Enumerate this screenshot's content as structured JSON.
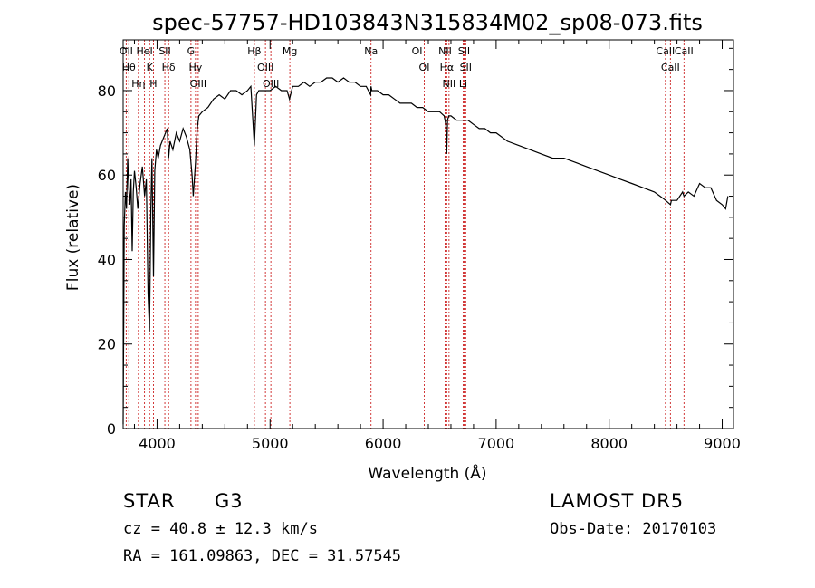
{
  "chart_data": {
    "type": "line",
    "title": "spec-57757-HD103843N315834M02_sp08-073.fits",
    "xlabel": "Wavelength (Å)",
    "ylabel": "Flux (relative)",
    "xlim": [
      3700,
      9100
    ],
    "ylim": [
      0,
      92
    ],
    "x_ticks": [
      4000,
      5000,
      6000,
      7000,
      8000,
      9000
    ],
    "y_ticks": [
      0,
      20,
      40,
      60,
      80
    ],
    "grid": false,
    "series": [
      {
        "x": [
          3700,
          3710,
          3720,
          3730,
          3740,
          3750,
          3760,
          3770,
          3780,
          3790,
          3800,
          3815,
          3830,
          3850,
          3870,
          3890,
          3905,
          3920,
          3933,
          3945,
          3955,
          3968,
          3980,
          3995,
          4010,
          4030,
          4060,
          4090,
          4102,
          4115,
          4140,
          4170,
          4200,
          4230,
          4260,
          4290,
          4310,
          4320,
          4340,
          4355,
          4370,
          4400,
          4450,
          4500,
          4550,
          4600,
          4650,
          4700,
          4750,
          4800,
          4830,
          4861,
          4880,
          4900,
          4950,
          5000,
          5050,
          5100,
          5150,
          5172,
          5200,
          5250,
          5300,
          5350,
          5400,
          5450,
          5500,
          5550,
          5600,
          5650,
          5700,
          5750,
          5800,
          5850,
          5890,
          5893,
          5900,
          5950,
          6000,
          6050,
          6100,
          6150,
          6200,
          6250,
          6300,
          6350,
          6400,
          6450,
          6500,
          6540,
          6555,
          6563,
          6570,
          6580,
          6600,
          6650,
          6700,
          6750,
          6800,
          6850,
          6900,
          6950,
          7000,
          7100,
          7200,
          7300,
          7400,
          7500,
          7600,
          7700,
          7800,
          7900,
          8000,
          8100,
          8200,
          8300,
          8400,
          8450,
          8500,
          8542,
          8550,
          8600,
          8650,
          8662,
          8700,
          8750,
          8800,
          8850,
          8900,
          8950,
          9000,
          9030,
          9050
        ],
        "y": [
          1,
          48,
          56,
          52,
          64,
          57,
          53,
          59,
          42,
          56,
          61,
          57,
          52,
          58,
          62,
          55,
          59,
          32,
          23,
          52,
          64,
          36,
          61,
          66,
          64,
          67,
          69,
          71,
          64,
          68,
          66,
          70,
          68,
          71,
          69,
          66,
          60,
          55,
          63,
          71,
          74,
          75,
          76,
          78,
          79,
          78,
          80,
          80,
          79,
          80,
          81,
          67,
          79,
          80,
          80,
          80,
          81,
          80,
          80,
          78,
          81,
          81,
          82,
          81,
          82,
          82,
          83,
          83,
          82,
          83,
          82,
          82,
          81,
          81,
          79,
          81,
          80,
          80,
          79,
          79,
          78,
          77,
          77,
          77,
          76,
          76,
          75,
          75,
          75,
          74,
          72,
          65,
          73,
          74,
          74,
          73,
          73,
          73,
          72,
          71,
          71,
          70,
          70,
          68,
          67,
          66,
          65,
          64,
          64,
          63,
          62,
          61,
          60,
          59,
          58,
          57,
          56,
          55,
          54,
          53,
          54,
          54,
          56,
          55,
          56,
          55,
          58,
          57,
          57,
          54,
          53,
          52,
          55
        ]
      }
    ],
    "lines": [
      {
        "w": 3727,
        "label": "OII"
      },
      {
        "w": 3750,
        "label": "Hθ"
      },
      {
        "w": 3835,
        "label": "Hη"
      },
      {
        "w": 3889,
        "label": "HeI"
      },
      {
        "w": 3934,
        "label": "K"
      },
      {
        "w": 3968,
        "label": "H"
      },
      {
        "w": 4069,
        "label": "SII"
      },
      {
        "w": 4102,
        "label": "Hδ"
      },
      {
        "w": 4300,
        "label": "G"
      },
      {
        "w": 4340,
        "label": "Hγ"
      },
      {
        "w": 4364,
        "label": "OIII"
      },
      {
        "w": 4861,
        "label": "Hβ"
      },
      {
        "w": 4959,
        "label": "OIII"
      },
      {
        "w": 5007,
        "label": "OIII"
      },
      {
        "w": 5175,
        "label": "Mg"
      },
      {
        "w": 5893,
        "label": "Na"
      },
      {
        "w": 6300,
        "label": "OI"
      },
      {
        "w": 6364,
        "label": "OI"
      },
      {
        "w": 6548,
        "label": "NII"
      },
      {
        "w": 6563,
        "label": "Hα"
      },
      {
        "w": 6583,
        "label": "NII"
      },
      {
        "w": 6708,
        "label": "Li"
      },
      {
        "w": 6716,
        "label": "SII"
      },
      {
        "w": 6731,
        "label": "SII"
      },
      {
        "w": 8498,
        "label": "CaII"
      },
      {
        "w": 8542,
        "label": "CaII"
      },
      {
        "w": 8662,
        "label": "CaII"
      }
    ]
  },
  "info": {
    "class_label": "STAR",
    "subclass_label": "G3",
    "survey": "LAMOST DR5",
    "cz": "cz = 40.8 ± 12.3 km/s",
    "obs_date": "Obs-Date: 20170103",
    "coords": "RA = 161.09863, DEC =  31.57545"
  },
  "colors": {
    "axis": "#000000",
    "spectrum": "#000000",
    "line_marker": "#cc2222"
  }
}
